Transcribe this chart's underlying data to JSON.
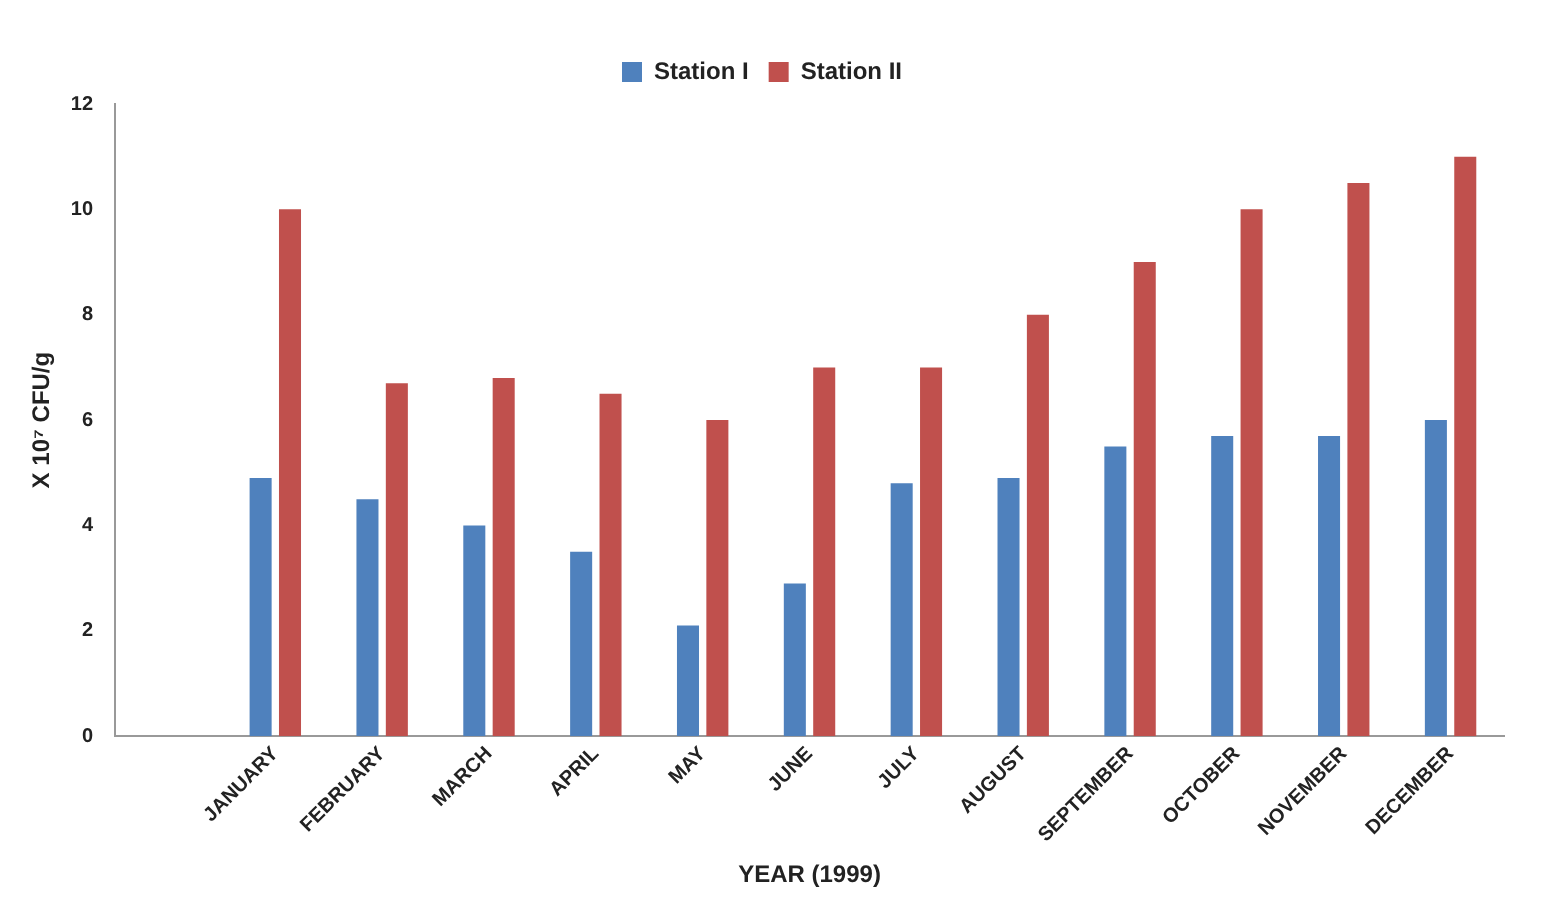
{
  "chart_data": {
    "type": "bar",
    "xlabel": "YEAR (1999)",
    "ylabel": "X 10⁷ CFU/g",
    "categories": [
      null,
      "JANUARY",
      "FEBRUARY",
      "MARCH",
      "APRIL",
      "MAY",
      "JUNE",
      "JULY",
      "AUGUST",
      "SEPTEMBER",
      "OCTOBER",
      "NOVEMBER",
      "DECEMBER"
    ],
    "series": [
      {
        "name": "Station I",
        "color": "#4f81bd",
        "values": [
          null,
          4.9,
          4.5,
          4.0,
          3.5,
          2.1,
          2.9,
          4.8,
          4.9,
          5.5,
          5.7,
          5.7,
          6.0
        ]
      },
      {
        "name": "Station II",
        "color": "#c0504d",
        "values": [
          null,
          10,
          6.7,
          6.8,
          6.5,
          6.0,
          7.0,
          7.0,
          8.0,
          9.0,
          10.0,
          10.5,
          11.0
        ]
      }
    ],
    "ylim": [
      0,
      12
    ],
    "yticks": [
      0,
      2,
      4,
      6,
      8,
      10,
      12
    ],
    "grid": false,
    "legend": "top"
  }
}
